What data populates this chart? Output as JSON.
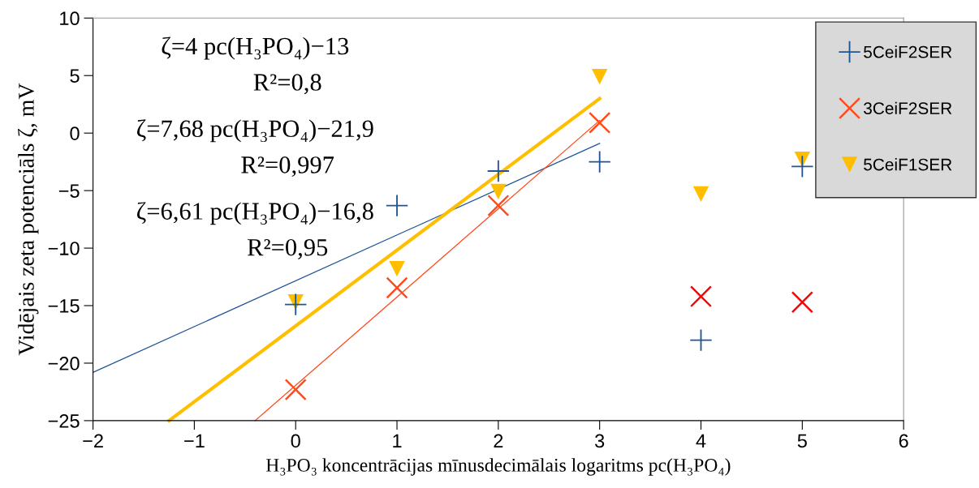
{
  "chart_data": {
    "type": "scatter",
    "xlabel": "H₃PO₃ koncentrācijas mīnusdecimālais logaritms pc(H₃PO₄)",
    "ylabel": "Vidējais zeta potenciāls ζ, mV",
    "x": [
      0,
      1,
      2,
      3,
      4,
      5
    ],
    "xlim": [
      -2,
      6
    ],
    "xticks": [
      -2,
      -1,
      0,
      1,
      2,
      3,
      4,
      5,
      6
    ],
    "ylim": [
      -25,
      10
    ],
    "yticks": [
      -25,
      -20,
      -15,
      -10,
      -5,
      0,
      5,
      10
    ],
    "grid": false,
    "legend": "top right",
    "series": [
      {
        "name": "5CeiF2SER",
        "color": "#1f5596",
        "values": [
          -14.9,
          -6.3,
          -3.3,
          -2.5,
          -18.0,
          -2.9
        ]
      },
      {
        "name": "3CeiF2SER",
        "color": "#ff4a1c",
        "colors": [
          "#ff4a1c",
          "#ff4a1c",
          "#ff4a1c",
          "#ff4a1c",
          "#ff0000",
          "#ff0000"
        ],
        "marker": "cross",
        "values": [
          -22.3,
          -13.45,
          -6.3,
          0.9,
          -14.2,
          -14.7
        ]
      },
      {
        "name": "5CeiF1SER",
        "color": "#ffbf00",
        "marker": "triangle",
        "values": [
          -14.7,
          -11.8,
          -5.1,
          4.9,
          -5.3,
          -2.3
        ]
      },
      {
        "type": "line",
        "color": "#1f5596",
        "x": [
          -2,
          3
        ],
        "values": [
          -20.8,
          -0.9
        ]
      },
      {
        "type": "line",
        "color": "#ff4a1c",
        "x": [
          -0.4,
          3
        ],
        "values": [
          -25,
          1.1
        ]
      },
      {
        "type": "line",
        "color": "#ffbf00",
        "x": [
          -1.25,
          3
        ],
        "values": [
          -25,
          3.0
        ]
      }
    ],
    "annotations": [
      "ζ=4 pc(H₃PO₄)−13",
      "R²=0,8",
      "ζ=7,68 pc(H₃PO₄)−21,9",
      "R²=0,997",
      "ζ=6,61 pc(H₃PO₄)−16,8",
      "R²=0,95"
    ]
  }
}
